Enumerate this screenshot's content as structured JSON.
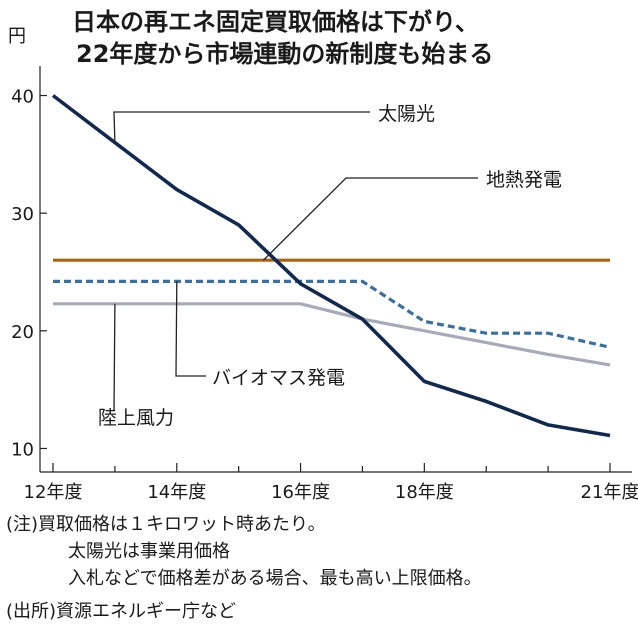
{
  "chart_data": {
    "type": "line",
    "title_lines": [
      "日本の再エネ固定買取価格は下がり、",
      "22年度から市場連動の新制度も始まる"
    ],
    "y_unit": "円",
    "ylim": [
      8,
      42
    ],
    "yticks": [
      10,
      20,
      30,
      40
    ],
    "xlim": [
      12,
      21
    ],
    "xticks": [
      {
        "x": 12,
        "label": "12年度"
      },
      {
        "x": 14,
        "label": "14年度"
      },
      {
        "x": 16,
        "label": "16年度"
      },
      {
        "x": 18,
        "label": "18年度"
      },
      {
        "x": 21,
        "label": "21年度"
      }
    ],
    "grid": false,
    "series": [
      {
        "name": "太陽光",
        "color": "#13294b",
        "style": "solid",
        "points": [
          [
            12,
            40
          ],
          [
            13,
            36
          ],
          [
            14,
            32
          ],
          [
            15,
            29
          ],
          [
            16,
            24
          ],
          [
            17,
            21
          ],
          [
            18,
            15.7
          ],
          [
            19,
            14
          ],
          [
            20,
            12
          ],
          [
            21,
            11.1
          ]
        ]
      },
      {
        "name": "地熱発電",
        "color": "#a5661c",
        "style": "solid",
        "points": [
          [
            12,
            26
          ],
          [
            21,
            26
          ]
        ]
      },
      {
        "name": "バイオマス発電",
        "color": "#3f6f96",
        "style": "dashed",
        "points": [
          [
            12,
            24.2
          ],
          [
            17,
            24.2
          ],
          [
            18,
            20.8
          ],
          [
            19,
            19.8
          ],
          [
            20,
            19.8
          ],
          [
            21,
            18.6
          ]
        ]
      },
      {
        "name": "陸上風力",
        "color": "#a8aab8",
        "style": "solid",
        "points": [
          [
            12,
            22.3
          ],
          [
            16,
            22.3
          ],
          [
            17,
            21
          ],
          [
            18,
            20
          ],
          [
            19,
            19
          ],
          [
            20,
            18
          ],
          [
            21,
            17.1
          ]
        ]
      }
    ],
    "annotations": [
      {
        "series": "太陽光",
        "text": "太陽光"
      },
      {
        "series": "地熱発電",
        "text": "地熱発電"
      },
      {
        "series": "バイオマス発電",
        "text": "バイオマス発電"
      },
      {
        "series": "陸上風力",
        "text": "陸上風力"
      }
    ],
    "notes": [
      "(注)買取価格は１キロワット時あたり。",
      "太陽光は事業用価格",
      "入札などで価格差がある場合、最も高い上限価格。",
      "(出所)資源エネルギー庁など"
    ]
  }
}
